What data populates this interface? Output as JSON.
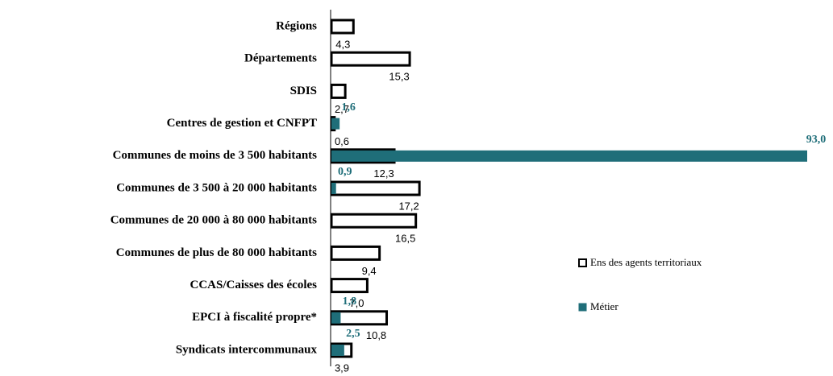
{
  "chart_data": {
    "type": "bar",
    "orientation": "horizontal",
    "categories": [
      "Régions",
      "Départements",
      "SDIS",
      "Centres de gestion et CNFPT",
      "Communes de moins de 3 500 habitants",
      "Communes de 3 500 à 20 000 habitants",
      "Communes de 20 000 à 80 000 habitants",
      "Communes de plus de 80 000 habitants",
      "CCAS/Caisses des écoles",
      "EPCI à fiscalité propre*",
      "Syndicats intercommunaux"
    ],
    "series": [
      {
        "name": "Ens des agents territoriaux",
        "color": "#ffffff",
        "values": [
          4.3,
          15.3,
          2.7,
          0.6,
          12.3,
          17.2,
          16.5,
          9.4,
          7.0,
          10.8,
          3.9
        ],
        "value_labels": [
          "4,3",
          "15,3",
          "2,7",
          "0,6",
          "12,3",
          "17,2",
          "16,5",
          "9,4",
          "7,0",
          "10,8",
          "3,9"
        ]
      },
      {
        "name": "Métier",
        "color": "#1f6e79",
        "values": [
          null,
          null,
          null,
          1.6,
          93.0,
          0.9,
          null,
          null,
          null,
          1.8,
          2.5
        ],
        "value_labels": [
          null,
          null,
          null,
          "1,6",
          "93,0",
          "0,9",
          null,
          null,
          null,
          "1,8",
          "2,5"
        ]
      }
    ],
    "xlim": [
      0,
      93
    ],
    "legend": "right"
  }
}
